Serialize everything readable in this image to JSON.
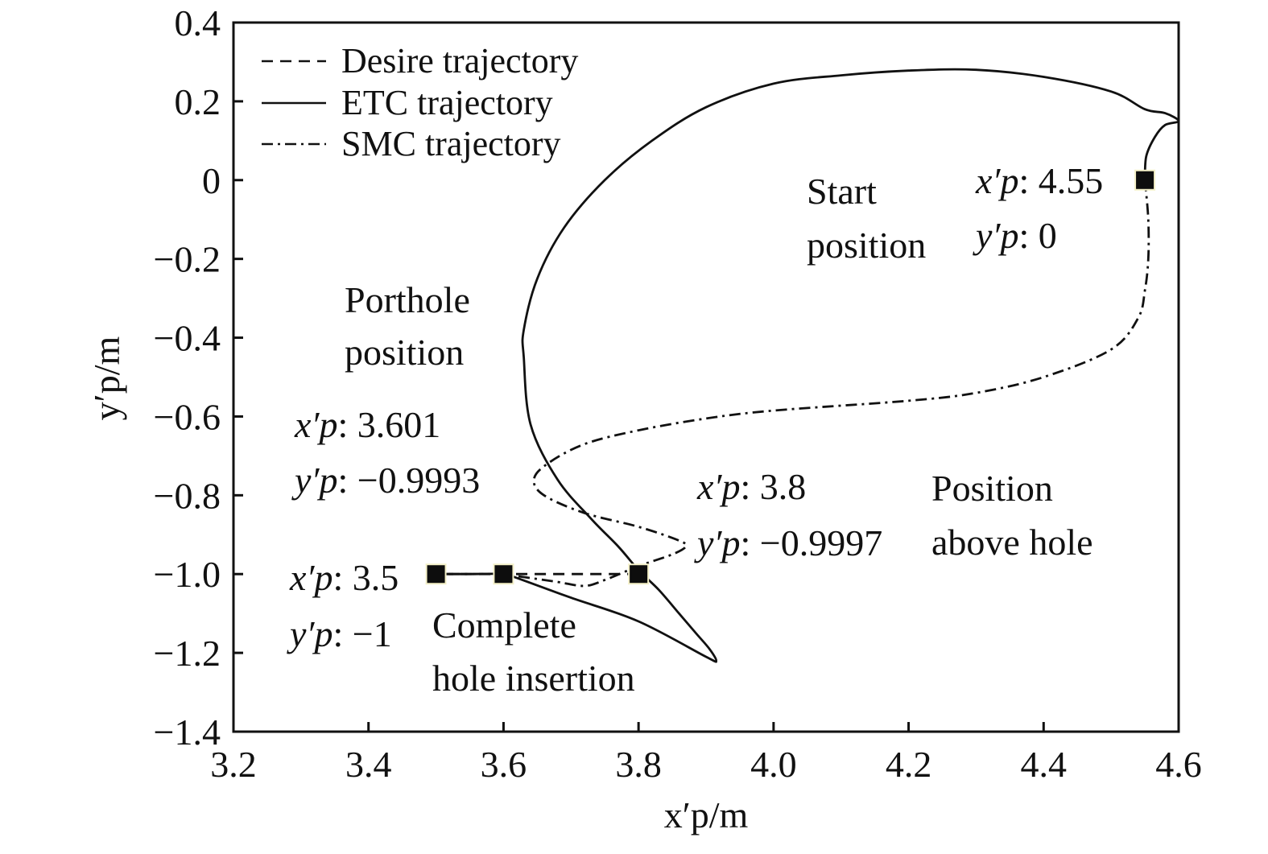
{
  "chart_data": {
    "type": "line",
    "xlabel": "x′p/m",
    "ylabel": "y′p/m",
    "xlim": [
      3.2,
      4.6
    ],
    "ylim": [
      -1.4,
      0.4
    ],
    "x_ticks": [
      "3.2",
      "3.4",
      "3.6",
      "3.8",
      "4.0",
      "4.2",
      "4.4",
      "4.6"
    ],
    "y_ticks": [
      "0.4",
      "0.2",
      "0",
      "−0.2",
      "−0.4",
      "−0.6",
      "−0.8",
      "−1.0",
      "−1.2",
      "−1.4"
    ],
    "grid": false,
    "legend_position": "top-left",
    "series": [
      {
        "name": "Desire trajectory",
        "style": "dashed",
        "points": [
          [
            3.8,
            -1.0
          ],
          [
            3.6,
            -1.0
          ],
          [
            3.5,
            -1.0
          ]
        ]
      },
      {
        "name": "ETC trajectory",
        "style": "solid",
        "points": [
          [
            4.55,
            0.0
          ],
          [
            4.552,
            0.06
          ],
          [
            4.565,
            0.11
          ],
          [
            4.58,
            0.14
          ],
          [
            4.6,
            0.15
          ],
          [
            4.58,
            0.17
          ],
          [
            4.55,
            0.18
          ],
          [
            4.5,
            0.225
          ],
          [
            4.4,
            0.262
          ],
          [
            4.3,
            0.28
          ],
          [
            4.2,
            0.278
          ],
          [
            4.1,
            0.266
          ],
          [
            4.0,
            0.245
          ],
          [
            3.9,
            0.185
          ],
          [
            3.82,
            0.1
          ],
          [
            3.75,
            0.0
          ],
          [
            3.69,
            -0.12
          ],
          [
            3.65,
            -0.25
          ],
          [
            3.63,
            -0.38
          ],
          [
            3.63,
            -0.45
          ],
          [
            3.64,
            -0.62
          ],
          [
            3.68,
            -0.76
          ],
          [
            3.73,
            -0.86
          ],
          [
            3.77,
            -0.93
          ],
          [
            3.8,
            -0.99
          ],
          [
            3.83,
            -1.04
          ],
          [
            3.86,
            -1.1
          ],
          [
            3.885,
            -1.15
          ],
          [
            3.905,
            -1.19
          ],
          [
            3.915,
            -1.22
          ],
          [
            3.9,
            -1.21
          ],
          [
            3.8,
            -1.12
          ],
          [
            3.7,
            -1.06
          ],
          [
            3.62,
            -1.01
          ],
          [
            3.6,
            -1.0
          ],
          [
            3.55,
            -1.0
          ],
          [
            3.5,
            -1.0
          ]
        ]
      },
      {
        "name": "SMC trajectory",
        "style": "dashdot",
        "points": [
          [
            4.55,
            0.0
          ],
          [
            4.555,
            -0.1
          ],
          [
            4.555,
            -0.2
          ],
          [
            4.55,
            -0.28
          ],
          [
            4.54,
            -0.35
          ],
          [
            4.5,
            -0.43
          ],
          [
            4.4,
            -0.5
          ],
          [
            4.3,
            -0.54
          ],
          [
            4.2,
            -0.56
          ],
          [
            4.0,
            -0.585
          ],
          [
            3.9,
            -0.605
          ],
          [
            3.8,
            -0.635
          ],
          [
            3.72,
            -0.67
          ],
          [
            3.665,
            -0.72
          ],
          [
            3.645,
            -0.76
          ],
          [
            3.66,
            -0.8
          ],
          [
            3.72,
            -0.845
          ],
          [
            3.8,
            -0.88
          ],
          [
            3.86,
            -0.915
          ],
          [
            3.87,
            -0.93
          ],
          [
            3.85,
            -0.95
          ],
          [
            3.8,
            -0.98
          ],
          [
            3.75,
            -1.015
          ],
          [
            3.72,
            -1.03
          ],
          [
            3.68,
            -1.02
          ],
          [
            3.62,
            -1.005
          ],
          [
            3.6,
            -1.0
          ],
          [
            3.55,
            -1.0
          ],
          [
            3.5,
            -1.0
          ]
        ]
      }
    ],
    "markers": [
      [
        4.55,
        0.0
      ],
      [
        3.8,
        -1.0
      ],
      [
        3.6,
        -1.0
      ],
      [
        3.5,
        -1.0
      ]
    ],
    "annotations": {
      "start_title_1": "Start",
      "start_title_2": "position",
      "start_x_sym": "x′p",
      "start_x_val": ": 4.55",
      "start_y_sym": "y′p",
      "start_y_val": ": 0",
      "porthole_title_1": "Porthole",
      "porthole_title_2": "position",
      "porthole_x_sym": "x′p",
      "porthole_x_val": ": 3.601",
      "porthole_y_sym": "y′p",
      "porthole_y_val": ": −0.9993",
      "above_title_1": "Position",
      "above_title_2": "above hole",
      "above_x_sym": "x′p",
      "above_x_val": ": 3.8",
      "above_y_sym": "y′p",
      "above_y_val": ": −0.9997",
      "complete_title_1": "Complete",
      "complete_title_2": "hole insertion",
      "complete_x_sym": "x′p",
      "complete_x_val": ": 3.5",
      "complete_y_sym": "y′p",
      "complete_y_val": ": −1"
    }
  }
}
